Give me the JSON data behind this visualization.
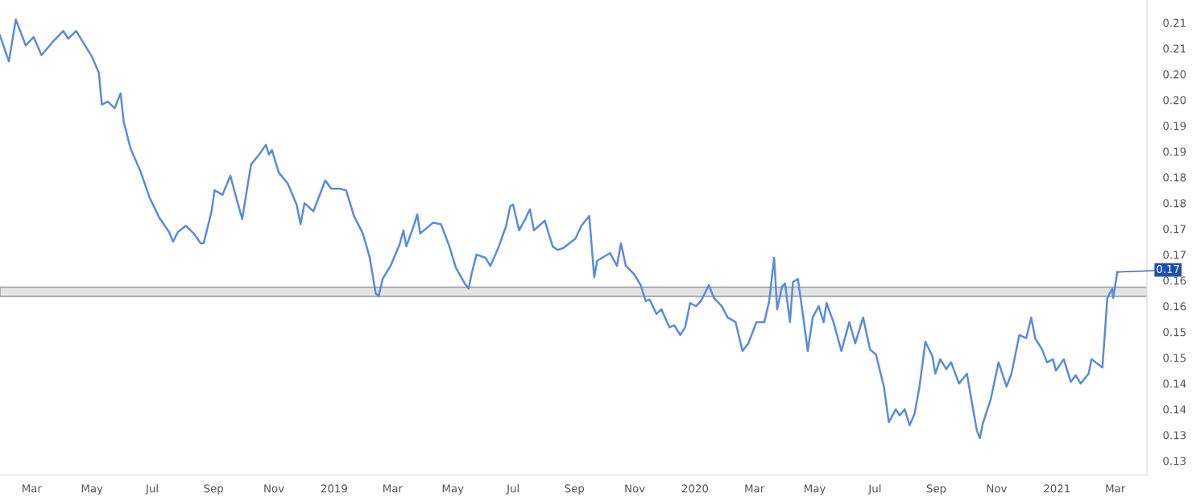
{
  "chart_data": {
    "type": "line",
    "x": [
      "2018-01-28",
      "2018-02-06",
      "2018-02-13",
      "2018-02-23",
      "2018-03-03",
      "2018-03-11",
      "2018-03-22",
      "2018-04-02",
      "2018-04-07",
      "2018-04-15",
      "2018-04-22",
      "2018-05-01",
      "2018-05-08",
      "2018-05-11",
      "2018-05-17",
      "2018-05-24",
      "2018-05-30",
      "2018-06-02",
      "2018-06-09",
      "2018-06-19",
      "2018-06-28",
      "2018-07-08",
      "2018-07-18",
      "2018-07-22",
      "2018-07-27",
      "2018-08-04",
      "2018-08-12",
      "2018-08-19",
      "2018-08-22",
      "2018-08-30",
      "2018-09-02",
      "2018-09-10",
      "2018-09-18",
      "2018-09-25",
      "2018-09-30",
      "2018-10-06",
      "2018-10-09",
      "2018-10-17",
      "2018-10-24",
      "2018-10-27",
      "2018-10-30",
      "2018-11-06",
      "2018-11-15",
      "2018-11-24",
      "2018-11-28",
      "2018-12-02",
      "2018-12-11",
      "2018-12-23",
      "2018-12-29",
      "2019-01-06",
      "2019-01-13",
      "2019-01-21",
      "2019-01-30",
      "2019-02-06",
      "2019-02-12",
      "2019-02-15",
      "2019-02-19",
      "2019-02-27",
      "2019-03-08",
      "2019-03-12",
      "2019-03-15",
      "2019-03-23",
      "2019-03-26",
      "2019-03-29",
      "2019-04-11",
      "2019-04-19",
      "2019-04-27",
      "2019-05-04",
      "2019-05-13",
      "2019-05-17",
      "2019-05-20",
      "2019-05-25",
      "2019-06-03",
      "2019-06-08",
      "2019-06-16",
      "2019-06-24",
      "2019-06-28",
      "2019-07-01",
      "2019-07-07",
      "2019-07-14",
      "2019-07-18",
      "2019-07-22",
      "2019-08-02",
      "2019-08-10",
      "2019-08-15",
      "2019-08-21",
      "2019-09-02",
      "2019-09-08",
      "2019-09-16",
      "2019-09-21",
      "2019-09-24",
      "2019-10-07",
      "2019-10-14",
      "2019-10-18",
      "2019-10-23",
      "2019-10-31",
      "2019-11-07",
      "2019-11-12",
      "2019-11-16",
      "2019-11-23",
      "2019-11-28",
      "2019-12-06",
      "2019-12-11",
      "2019-12-17",
      "2019-12-22",
      "2019-12-27",
      "2020-01-02",
      "2020-01-07",
      "2020-01-15",
      "2020-01-20",
      "2020-01-28",
      "2020-02-03",
      "2020-02-11",
      "2020-02-18",
      "2020-02-24",
      "2020-03-03",
      "2020-03-11",
      "2020-03-16",
      "2020-03-21",
      "2020-03-24",
      "2020-03-29",
      "2020-04-01",
      "2020-04-06",
      "2020-04-09",
      "2020-04-14",
      "2020-04-19",
      "2020-04-24",
      "2020-04-29",
      "2020-05-05",
      "2020-05-10",
      "2020-05-13",
      "2020-05-20",
      "2020-05-28",
      "2020-06-05",
      "2020-06-11",
      "2020-06-19",
      "2020-06-26",
      "2020-07-02",
      "2020-07-10",
      "2020-07-15",
      "2020-07-22",
      "2020-07-26",
      "2020-07-31",
      "2020-08-05",
      "2020-08-10",
      "2020-08-15",
      "2020-08-21",
      "2020-08-28",
      "2020-08-31",
      "2020-09-05",
      "2020-09-11",
      "2020-09-16",
      "2020-09-24",
      "2020-10-02",
      "2020-10-07",
      "2020-10-12",
      "2020-10-15",
      "2020-10-18",
      "2020-10-26",
      "2020-11-03",
      "2020-11-11",
      "2020-11-16",
      "2020-11-24",
      "2020-12-01",
      "2020-12-06",
      "2020-12-10",
      "2020-12-17",
      "2020-12-22",
      "2020-12-28",
      "2020-12-31",
      "2021-01-08",
      "2021-01-15",
      "2021-01-20",
      "2021-01-25",
      "2021-02-02",
      "2021-02-05",
      "2021-02-16",
      "2021-02-21",
      "2021-02-26",
      "2021-02-27",
      "2021-03-03"
    ],
    "series": [
      {
        "color": "#5b8bd9",
        "values": [
          0.211,
          0.206,
          0.2141,
          0.2091,
          0.2107,
          0.2072,
          0.2097,
          0.2119,
          0.2104,
          0.2119,
          0.2097,
          0.2069,
          0.2038,
          0.1976,
          0.1982,
          0.1969,
          0.1998,
          0.1944,
          0.1891,
          0.1847,
          0.1797,
          0.1757,
          0.1729,
          0.171,
          0.1729,
          0.1741,
          0.1726,
          0.1707,
          0.1707,
          0.1769,
          0.181,
          0.1801,
          0.1838,
          0.1788,
          0.1754,
          0.1826,
          0.186,
          0.1879,
          0.1898,
          0.1879,
          0.1888,
          0.1844,
          0.1823,
          0.1782,
          0.1744,
          0.1785,
          0.1769,
          0.1829,
          0.1813,
          0.1813,
          0.181,
          0.176,
          0.1726,
          0.1679,
          0.161,
          0.1604,
          0.1638,
          0.1663,
          0.1704,
          0.1732,
          0.1701,
          0.1744,
          0.1763,
          0.1726,
          0.1747,
          0.1744,
          0.1704,
          0.166,
          0.1629,
          0.1619,
          0.1648,
          0.1685,
          0.1679,
          0.1663,
          0.1698,
          0.1741,
          0.1779,
          0.1782,
          0.1732,
          0.1757,
          0.1773,
          0.1732,
          0.1751,
          0.1701,
          0.1694,
          0.1698,
          0.1716,
          0.1741,
          0.176,
          0.1641,
          0.1673,
          0.1688,
          0.1663,
          0.1707,
          0.1663,
          0.1648,
          0.1626,
          0.1595,
          0.1598,
          0.157,
          0.1579,
          0.1544,
          0.1548,
          0.1529,
          0.1544,
          0.1591,
          0.1585,
          0.1595,
          0.1626,
          0.1601,
          0.1585,
          0.1563,
          0.1554,
          0.1498,
          0.1513,
          0.1554,
          0.1554,
          0.1595,
          0.1679,
          0.1579,
          0.1623,
          0.1629,
          0.1554,
          0.1632,
          0.1638,
          0.157,
          0.1498,
          0.1563,
          0.1585,
          0.1554,
          0.1591,
          0.1554,
          0.1498,
          0.1554,
          0.1513,
          0.1563,
          0.1501,
          0.1491,
          0.1429,
          0.136,
          0.1385,
          0.1373,
          0.1385,
          0.1354,
          0.1376,
          0.1429,
          0.1516,
          0.1488,
          0.1454,
          0.1482,
          0.1463,
          0.1476,
          0.1435,
          0.1454,
          0.1398,
          0.1344,
          0.1329,
          0.1357,
          0.1404,
          0.1476,
          0.1429,
          0.1454,
          0.1529,
          0.1523,
          0.1563,
          0.1523,
          0.1501,
          0.1476,
          0.1482,
          0.146,
          0.1482,
          0.1438,
          0.1451,
          0.1435,
          0.1454,
          0.1482,
          0.1466,
          0.1601,
          0.1619,
          0.1601,
          0.1651
        ]
      }
    ],
    "xlim": [
      "2018-01-28",
      "2021-04-02"
    ],
    "xticks": [
      {
        "value": "2018-03-01",
        "label": "Mar"
      },
      {
        "value": "2018-05-01",
        "label": "May"
      },
      {
        "value": "2018-07-01",
        "label": "Jul"
      },
      {
        "value": "2018-09-01",
        "label": "Sep"
      },
      {
        "value": "2018-11-01",
        "label": "Nov"
      },
      {
        "value": "2019-01-01",
        "label": "2019"
      },
      {
        "value": "2019-03-01",
        "label": "Mar"
      },
      {
        "value": "2019-05-01",
        "label": "May"
      },
      {
        "value": "2019-07-01",
        "label": "Jul"
      },
      {
        "value": "2019-09-01",
        "label": "Sep"
      },
      {
        "value": "2019-11-01",
        "label": "Nov"
      },
      {
        "value": "2020-01-01",
        "label": "2020"
      },
      {
        "value": "2020-03-01",
        "label": "Mar"
      },
      {
        "value": "2020-05-01",
        "label": "May"
      },
      {
        "value": "2020-07-01",
        "label": "Jul"
      },
      {
        "value": "2020-09-01",
        "label": "Sep"
      },
      {
        "value": "2020-11-01",
        "label": "Nov"
      },
      {
        "value": "2021-01-01",
        "label": "2021"
      },
      {
        "value": "2021-03-01",
        "label": "Mar"
      }
    ],
    "ylim": [
      0.1257,
      0.2179
    ],
    "yticks": [
      {
        "value": 0.1285,
        "label": "0.13"
      },
      {
        "value": 0.1335,
        "label": "0.13"
      },
      {
        "value": 0.1385,
        "label": "0.14"
      },
      {
        "value": 0.1435,
        "label": "0.14"
      },
      {
        "value": 0.1485,
        "label": "0.15"
      },
      {
        "value": 0.1535,
        "label": "0.15"
      },
      {
        "value": 0.1585,
        "label": "0.16"
      },
      {
        "value": 0.1635,
        "label": "0.16"
      },
      {
        "value": 0.1685,
        "label": "0.17"
      },
      {
        "value": 0.1735,
        "label": "0.17"
      },
      {
        "value": 0.1785,
        "label": "0.18"
      },
      {
        "value": 0.1835,
        "label": "0.18"
      },
      {
        "value": 0.1885,
        "label": "0.19"
      },
      {
        "value": 0.1935,
        "label": "0.19"
      },
      {
        "value": 0.1985,
        "label": "0.20"
      },
      {
        "value": 0.2035,
        "label": "0.20"
      },
      {
        "value": 0.2085,
        "label": "0.21"
      },
      {
        "value": 0.2135,
        "label": "0.21"
      }
    ],
    "bands": [
      {
        "axis": "y",
        "from": 0.1604,
        "to": 0.1622,
        "color": "#e3e3e3"
      }
    ],
    "annotations": [
      {
        "text": "0.17",
        "x": "2021-03-03",
        "y": 0.1651
      }
    ],
    "grid": false,
    "legend": false
  }
}
